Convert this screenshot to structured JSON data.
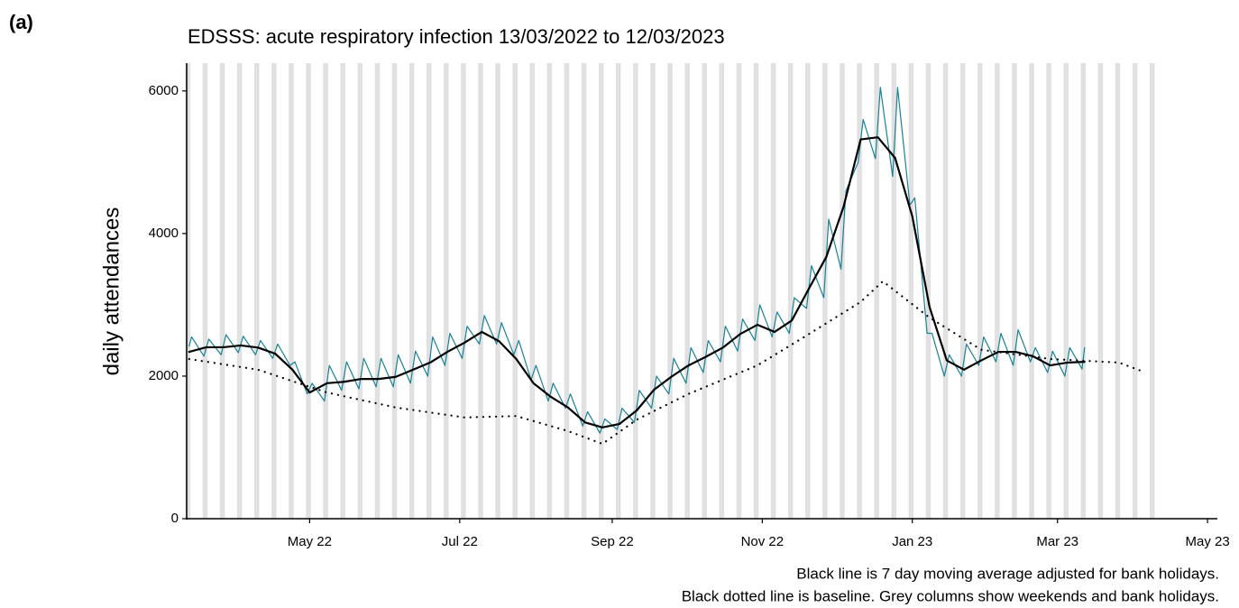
{
  "chart_data": {
    "type": "line",
    "panel_label": "(a)",
    "title": "EDSSS: acute respiratory infection 13/03/2022 to 12/03/2023",
    "y_label": "daily attendances",
    "notes": [
      "Black line is 7 day moving average adjusted for bank holidays.",
      "Black dotted line is baseline. Grey columns show weekends and bank holidays."
    ],
    "xlim": [
      "2022-03-12",
      "2023-05-05"
    ],
    "xticks": [
      {
        "value": "2022-05-01",
        "label": "May 22"
      },
      {
        "value": "2022-07-01",
        "label": "Jul 22"
      },
      {
        "value": "2022-09-01",
        "label": "Sep 22"
      },
      {
        "value": "2022-11-01",
        "label": "Nov 22"
      },
      {
        "value": "2023-01-01",
        "label": "Jan 23"
      },
      {
        "value": "2023-03-01",
        "label": "Mar 23"
      },
      {
        "value": "2023-05-01",
        "label": "May 23"
      }
    ],
    "ylim": [
      0,
      6390
    ],
    "yticks": [
      0,
      2000,
      4000,
      6000
    ],
    "weekend_color": "#e0e0e0",
    "series": [
      {
        "color": "#1a8296",
        "width": 1.2,
        "style": "solid",
        "x": [
          "2022-03-13",
          "2022-03-14",
          "2022-03-19",
          "2022-03-21",
          "2022-03-26",
          "2022-03-28",
          "2022-04-02",
          "2022-04-04",
          "2022-04-09",
          "2022-04-11",
          "2022-04-16",
          "2022-04-18",
          "2022-04-23",
          "2022-04-25",
          "2022-04-30",
          "2022-05-02",
          "2022-05-07",
          "2022-05-09",
          "2022-05-14",
          "2022-05-16",
          "2022-05-21",
          "2022-05-23",
          "2022-05-28",
          "2022-05-30",
          "2022-06-04",
          "2022-06-06",
          "2022-06-11",
          "2022-06-13",
          "2022-06-18",
          "2022-06-20",
          "2022-06-25",
          "2022-06-27",
          "2022-07-02",
          "2022-07-04",
          "2022-07-09",
          "2022-07-11",
          "2022-07-16",
          "2022-07-18",
          "2022-07-23",
          "2022-07-25",
          "2022-07-30",
          "2022-08-01",
          "2022-08-06",
          "2022-08-08",
          "2022-08-13",
          "2022-08-15",
          "2022-08-20",
          "2022-08-22",
          "2022-08-27",
          "2022-08-29",
          "2022-09-03",
          "2022-09-05",
          "2022-09-10",
          "2022-09-12",
          "2022-09-17",
          "2022-09-19",
          "2022-09-24",
          "2022-09-26",
          "2022-10-01",
          "2022-10-03",
          "2022-10-08",
          "2022-10-10",
          "2022-10-15",
          "2022-10-17",
          "2022-10-22",
          "2022-10-24",
          "2022-10-29",
          "2022-10-31",
          "2022-11-05",
          "2022-11-07",
          "2022-11-12",
          "2022-11-14",
          "2022-11-19",
          "2022-11-21",
          "2022-11-26",
          "2022-11-28",
          "2022-12-03",
          "2022-12-05",
          "2022-12-10",
          "2022-12-12",
          "2022-12-17",
          "2022-12-19",
          "2022-12-24",
          "2022-12-26",
          "2022-12-31",
          "2023-01-02",
          "2023-01-07",
          "2023-01-09",
          "2023-01-14",
          "2023-01-16",
          "2023-01-21",
          "2023-01-23",
          "2023-01-28",
          "2023-01-30",
          "2023-02-04",
          "2023-02-06",
          "2023-02-11",
          "2023-02-13",
          "2023-02-18",
          "2023-02-20",
          "2023-02-25",
          "2023-02-27",
          "2023-03-04",
          "2023-03-06",
          "2023-03-11",
          "2023-03-12"
        ],
        "values": [
          2420,
          2550,
          2280,
          2520,
          2300,
          2580,
          2330,
          2560,
          2300,
          2500,
          2250,
          2450,
          2150,
          2200,
          1750,
          1900,
          1650,
          2150,
          1800,
          2200,
          1820,
          2250,
          1850,
          2250,
          1850,
          2300,
          1900,
          2350,
          2000,
          2550,
          2150,
          2600,
          2250,
          2700,
          2450,
          2850,
          2450,
          2750,
          2300,
          2500,
          1950,
          2150,
          1650,
          1900,
          1550,
          1750,
          1300,
          1500,
          1200,
          1400,
          1250,
          1550,
          1350,
          1800,
          1550,
          2000,
          1750,
          2250,
          1900,
          2400,
          2050,
          2500,
          2200,
          2700,
          2350,
          2800,
          2500,
          3000,
          2550,
          2900,
          2600,
          3100,
          2950,
          3550,
          3100,
          4200,
          3500,
          4600,
          5000,
          5600,
          5050,
          6050,
          4800,
          6050,
          4400,
          4500,
          2600,
          2600,
          2000,
          2300,
          2000,
          2450,
          2150,
          2550,
          2200,
          2600,
          2150,
          2650,
          2200,
          2400,
          2050,
          2350,
          2000,
          2400,
          2100,
          2400
        ]
      },
      {
        "color": "#000000",
        "width": 2.2,
        "style": "solid",
        "x": [
          "2022-03-13",
          "2022-03-20",
          "2022-03-27",
          "2022-04-03",
          "2022-04-10",
          "2022-04-17",
          "2022-04-24",
          "2022-05-01",
          "2022-05-08",
          "2022-05-15",
          "2022-05-22",
          "2022-05-29",
          "2022-06-05",
          "2022-06-12",
          "2022-06-19",
          "2022-06-26",
          "2022-07-03",
          "2022-07-10",
          "2022-07-17",
          "2022-07-24",
          "2022-07-31",
          "2022-08-07",
          "2022-08-14",
          "2022-08-21",
          "2022-08-28",
          "2022-09-04",
          "2022-09-11",
          "2022-09-18",
          "2022-09-25",
          "2022-10-02",
          "2022-10-09",
          "2022-10-16",
          "2022-10-23",
          "2022-10-30",
          "2022-11-06",
          "2022-11-13",
          "2022-11-20",
          "2022-11-27",
          "2022-12-04",
          "2022-12-11",
          "2022-12-18",
          "2022-12-25",
          "2023-01-01",
          "2023-01-08",
          "2023-01-15",
          "2023-01-22",
          "2023-01-29",
          "2023-02-05",
          "2023-02-12",
          "2023-02-19",
          "2023-02-26",
          "2023-03-05",
          "2023-03-12"
        ],
        "values": [
          2340,
          2405,
          2405,
          2430,
          2400,
          2315,
          2090,
          1770,
          1900,
          1920,
          1960,
          1960,
          1990,
          2090,
          2190,
          2340,
          2470,
          2620,
          2490,
          2240,
          1900,
          1710,
          1560,
          1350,
          1280,
          1330,
          1520,
          1810,
          1990,
          2150,
          2270,
          2400,
          2590,
          2720,
          2620,
          2780,
          3230,
          3670,
          4370,
          5320,
          5350,
          5060,
          4240,
          2970,
          2220,
          2090,
          2220,
          2340,
          2340,
          2280,
          2150,
          2190,
          2200
        ]
      },
      {
        "color": "#000000",
        "width": 2.2,
        "style": "dotted",
        "x": [
          "2022-03-13",
          "2022-04-10",
          "2022-05-08",
          "2022-06-05",
          "2022-07-03",
          "2022-07-24",
          "2022-08-14",
          "2022-08-28",
          "2022-09-11",
          "2022-10-02",
          "2022-10-30",
          "2022-11-20",
          "2022-12-11",
          "2022-12-20",
          "2023-01-08",
          "2023-01-29",
          "2023-02-26",
          "2023-03-26",
          "2023-04-05"
        ],
        "values": [
          2240,
          2090,
          1770,
          1560,
          1420,
          1440,
          1230,
          1050,
          1390,
          1750,
          2150,
          2590,
          3040,
          3330,
          2820,
          2370,
          2240,
          2190,
          2060
        ]
      }
    ]
  }
}
